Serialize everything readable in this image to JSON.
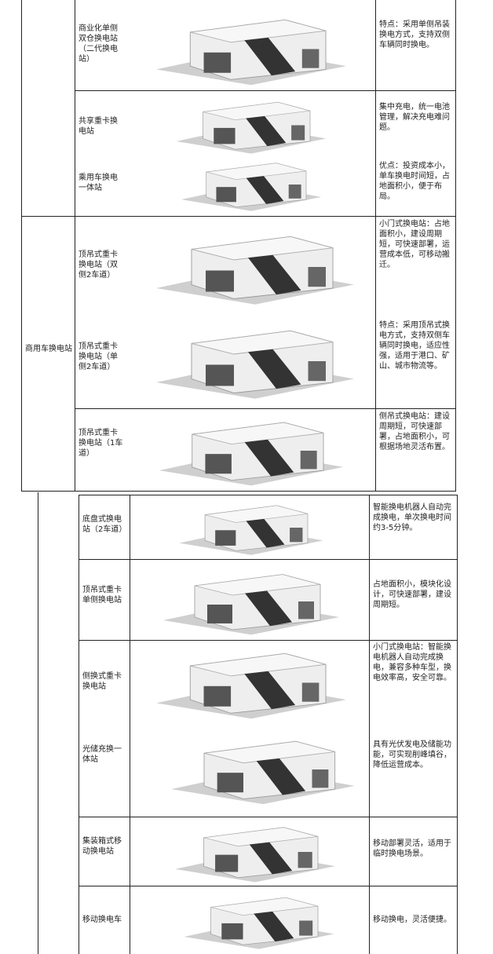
{
  "table1": {
    "category": "商用车换电站",
    "rows": [
      {
        "name": "商业化单侧双仓换电站（二代换电站）",
        "description": "特点：采用单侧吊装换电方式，支持双侧车辆同时换电。"
      },
      {
        "name": "共享重卡换电站",
        "description": "集中充电，统一电池管理，解决充电难问题。"
      },
      {
        "name": "乘用车换电一体站",
        "description": "优点：投资成本小，单车换电时间短，占地面积小，便于布局。"
      },
      {
        "name": "顶吊式重卡换电站（双侧2车道）",
        "description": "小门式换电站：占地面积小，建设周期短，可快速部署，运营成本低，可移动搬迁。"
      },
      {
        "name": "顶吊式重卡换电站（单侧2车道）",
        "description": "特点：采用顶吊式换电方式，支持双侧车辆同时换电，适应性强，适用于港口、矿山、城市物流等。"
      },
      {
        "name": "顶吊式重卡换电站（1车道）",
        "description": "侧吊式换电站：建设周期短，可快速部署，占地面积小，可根据场地灵活布置。"
      }
    ]
  },
  "table2": {
    "rows": [
      {
        "name": "底盘式换电站（2车道）",
        "description": "智能换电机器人自动完成换电，单次换电时间约3-5分钟。"
      },
      {
        "name": "顶吊式重卡单侧换电站",
        "description": "占地面积小，模块化设计，可快速部署，建设周期短。"
      },
      {
        "name": "侧换式重卡换电站",
        "description": "小门式换电站：智能换电机器人自动完成换电，兼容多种车型，换电效率高，安全可靠。"
      },
      {
        "name": "光储充换一体站",
        "description": "具有光伏发电及储能功能，可实现削峰填谷，降低运营成本。"
      },
      {
        "name": "集装箱式移动换电站",
        "description": "移动部署灵活，适用于临时换电场景。"
      },
      {
        "name": "移动换电车",
        "description": "移动换电，灵活便捷。"
      }
    ]
  }
}
